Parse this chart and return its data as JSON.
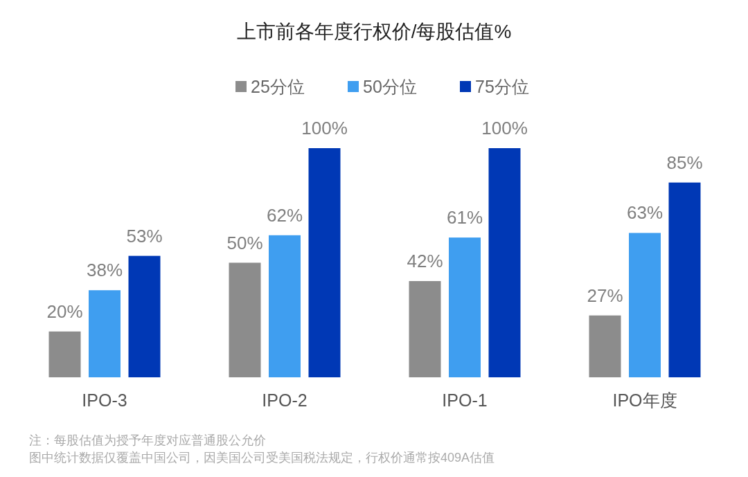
{
  "chart_data": {
    "type": "bar",
    "title": "上市前各年度行权价/每股估值%",
    "categories": [
      "IPO-3",
      "IPO-2",
      "IPO-1",
      "IPO年度"
    ],
    "series": [
      {
        "name": "25分位",
        "color": "#8c8c8c",
        "values": [
          20,
          50,
          42,
          27
        ],
        "value_labels": [
          "20%",
          "50%",
          "42%",
          "27%"
        ]
      },
      {
        "name": "50分位",
        "color": "#3f9ef0",
        "values": [
          38,
          62,
          61,
          63
        ],
        "value_labels": [
          "38%",
          "62%",
          "61%",
          "63%"
        ]
      },
      {
        "name": "75分位",
        "color": "#0038b5",
        "values": [
          53,
          100,
          100,
          85
        ],
        "value_labels": [
          "53%",
          "100%",
          "100%",
          "85%"
        ]
      }
    ],
    "legend": "top",
    "annotations": [
      "注：每股估值为授予年度对应普通股公允价",
      "图中统计数据仅覆盖中国公司，因美国公司受美国税法规定，行权价通常按409A估值"
    ]
  }
}
